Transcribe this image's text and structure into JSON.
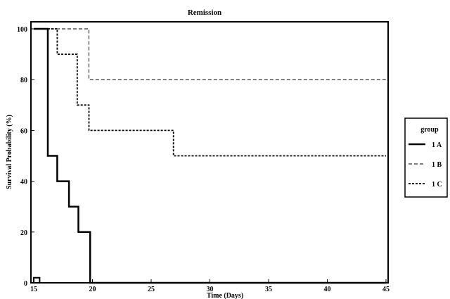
{
  "chart_data": {
    "type": "line",
    "title": "Remission",
    "xlabel": "Time (Days)",
    "ylabel": "Survival Probability (%)",
    "xlim": [
      15,
      45
    ],
    "ylim": [
      0,
      100
    ],
    "x_ticks": [
      15,
      20,
      25,
      30,
      35,
      40,
      45
    ],
    "y_ticks": [
      0,
      20,
      40,
      60,
      80,
      100
    ],
    "grid": false,
    "step": true,
    "legend": {
      "title": "group",
      "placement": "right"
    },
    "series": [
      {
        "name": "1 A",
        "style": "solid-thick",
        "x": [
          15,
          16.2,
          16.2,
          17,
          17,
          18,
          18,
          18.8,
          18.8,
          19.8,
          19.8,
          45
        ],
        "y": [
          100,
          100,
          50,
          50,
          40,
          40,
          30,
          30,
          20,
          20,
          0,
          0
        ]
      },
      {
        "name": "1 B",
        "style": "dashed",
        "x": [
          15,
          19.7,
          19.7,
          45
        ],
        "y": [
          100,
          100,
          80,
          80
        ]
      },
      {
        "name": "1 C",
        "style": "dotted",
        "x": [
          15,
          17,
          17,
          18.7,
          18.7,
          19.7,
          19.7,
          26.9,
          26.9,
          45
        ],
        "y": [
          100,
          100,
          90,
          90,
          70,
          70,
          60,
          60,
          50,
          50
        ]
      }
    ],
    "annotations": [
      {
        "type": "censor-box",
        "x": [
          15,
          15.5
        ],
        "y": [
          0,
          2
        ]
      }
    ]
  }
}
